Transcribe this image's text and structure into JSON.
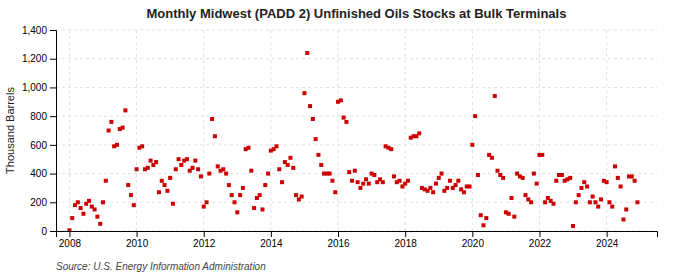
{
  "chart_data": {
    "type": "scatter",
    "title": "Monthly Midwest (PADD 2) Unfinished Oils Stocks at Bulk Terminals",
    "ylabel": "Thousand Barrels",
    "source": "Source: U.S. Energy Information Administration",
    "color": "#cc0000",
    "marker": "square",
    "grid": true,
    "xlim": [
      2007.6,
      2025.5
    ],
    "xticks": [
      2008,
      2010,
      2012,
      2014,
      2016,
      2018,
      2020,
      2022,
      2024
    ],
    "ylim": [
      0,
      1400
    ],
    "yticks": [
      0,
      200,
      400,
      600,
      800,
      {
        "value": 1000,
        "label": "1,000"
      },
      {
        "value": 1200,
        "label": "1,200"
      },
      {
        "value": 1400,
        "label": "1,400"
      }
    ],
    "x": [
      2008.0,
      2008.083,
      2008.167,
      2008.25,
      2008.333,
      2008.417,
      2008.5,
      2008.583,
      2008.667,
      2008.75,
      2008.833,
      2008.917,
      2009.0,
      2009.083,
      2009.167,
      2009.25,
      2009.333,
      2009.417,
      2009.5,
      2009.583,
      2009.667,
      2009.75,
      2009.833,
      2009.917,
      2010.0,
      2010.083,
      2010.167,
      2010.25,
      2010.333,
      2010.417,
      2010.5,
      2010.583,
      2010.667,
      2010.75,
      2010.833,
      2010.917,
      2011.0,
      2011.083,
      2011.167,
      2011.25,
      2011.333,
      2011.417,
      2011.5,
      2011.583,
      2011.667,
      2011.75,
      2011.833,
      2011.917,
      2012.0,
      2012.083,
      2012.167,
      2012.25,
      2012.333,
      2012.417,
      2012.5,
      2012.583,
      2012.667,
      2012.75,
      2012.833,
      2012.917,
      2013.0,
      2013.083,
      2013.167,
      2013.25,
      2013.333,
      2013.417,
      2013.5,
      2013.583,
      2013.667,
      2013.75,
      2013.833,
      2013.917,
      2014.0,
      2014.083,
      2014.167,
      2014.25,
      2014.333,
      2014.417,
      2014.5,
      2014.583,
      2014.667,
      2014.75,
      2014.833,
      2014.917,
      2015.0,
      2015.083,
      2015.167,
      2015.25,
      2015.333,
      2015.417,
      2015.5,
      2015.583,
      2015.667,
      2015.75,
      2015.833,
      2015.917,
      2016.0,
      2016.083,
      2016.167,
      2016.25,
      2016.333,
      2016.417,
      2016.5,
      2016.583,
      2016.667,
      2016.75,
      2016.833,
      2016.917,
      2017.0,
      2017.083,
      2017.167,
      2017.25,
      2017.333,
      2017.417,
      2017.5,
      2017.583,
      2017.667,
      2017.75,
      2017.833,
      2017.917,
      2018.0,
      2018.083,
      2018.167,
      2018.25,
      2018.333,
      2018.417,
      2018.5,
      2018.583,
      2018.667,
      2018.75,
      2018.833,
      2018.917,
      2019.0,
      2019.083,
      2019.167,
      2019.25,
      2019.333,
      2019.417,
      2019.5,
      2019.583,
      2019.667,
      2019.75,
      2019.833,
      2019.917,
      2020.0,
      2020.083,
      2020.167,
      2020.25,
      2020.333,
      2020.417,
      2020.5,
      2020.583,
      2020.667,
      2020.75,
      2020.833,
      2020.917,
      2021.0,
      2021.083,
      2021.167,
      2021.25,
      2021.333,
      2021.417,
      2021.5,
      2021.583,
      2021.667,
      2021.75,
      2021.833,
      2021.917,
      2022.0,
      2022.083,
      2022.167,
      2022.25,
      2022.333,
      2022.417,
      2022.5,
      2022.583,
      2022.667,
      2022.75,
      2022.833,
      2022.917,
      2023.0,
      2023.083,
      2023.167,
      2023.25,
      2023.333,
      2023.417,
      2023.5,
      2023.583,
      2023.667,
      2023.75,
      2023.833,
      2023.917,
      2024.0,
      2024.083,
      2024.167,
      2024.25,
      2024.333,
      2024.417,
      2024.5,
      2024.583,
      2024.667,
      2024.75,
      2024.833,
      2024.917
    ],
    "values": [
      5,
      90,
      180,
      200,
      160,
      120,
      190,
      210,
      170,
      150,
      100,
      50,
      200,
      350,
      700,
      760,
      590,
      600,
      710,
      720,
      840,
      320,
      250,
      180,
      430,
      580,
      590,
      430,
      440,
      490,
      460,
      480,
      270,
      350,
      320,
      280,
      370,
      190,
      430,
      500,
      460,
      490,
      500,
      420,
      440,
      490,
      430,
      380,
      170,
      200,
      400,
      780,
      660,
      450,
      420,
      430,
      400,
      320,
      250,
      200,
      130,
      250,
      300,
      570,
      580,
      420,
      160,
      230,
      250,
      150,
      320,
      400,
      560,
      570,
      590,
      430,
      340,
      480,
      460,
      510,
      440,
      250,
      220,
      240,
      960,
      1240,
      870,
      780,
      640,
      530,
      460,
      400,
      400,
      400,
      350,
      270,
      900,
      910,
      790,
      760,
      410,
      350,
      420,
      340,
      300,
      330,
      360,
      330,
      400,
      390,
      340,
      360,
      340,
      590,
      580,
      570,
      380,
      340,
      350,
      310,
      330,
      350,
      650,
      660,
      660,
      680,
      300,
      290,
      280,
      300,
      270,
      330,
      370,
      400,
      280,
      300,
      350,
      300,
      320,
      350,
      290,
      270,
      310,
      310,
      600,
      800,
      390,
      110,
      40,
      90,
      530,
      510,
      940,
      420,
      390,
      370,
      130,
      120,
      230,
      100,
      400,
      380,
      370,
      250,
      220,
      200,
      400,
      330,
      530,
      530,
      200,
      230,
      210,
      190,
      350,
      390,
      390,
      350,
      360,
      370,
      35,
      200,
      250,
      300,
      340,
      310,
      200,
      240,
      200,
      170,
      220,
      350,
      340,
      200,
      170,
      450,
      370,
      310,
      80,
      150,
      380,
      380,
      350,
      200
    ]
  }
}
